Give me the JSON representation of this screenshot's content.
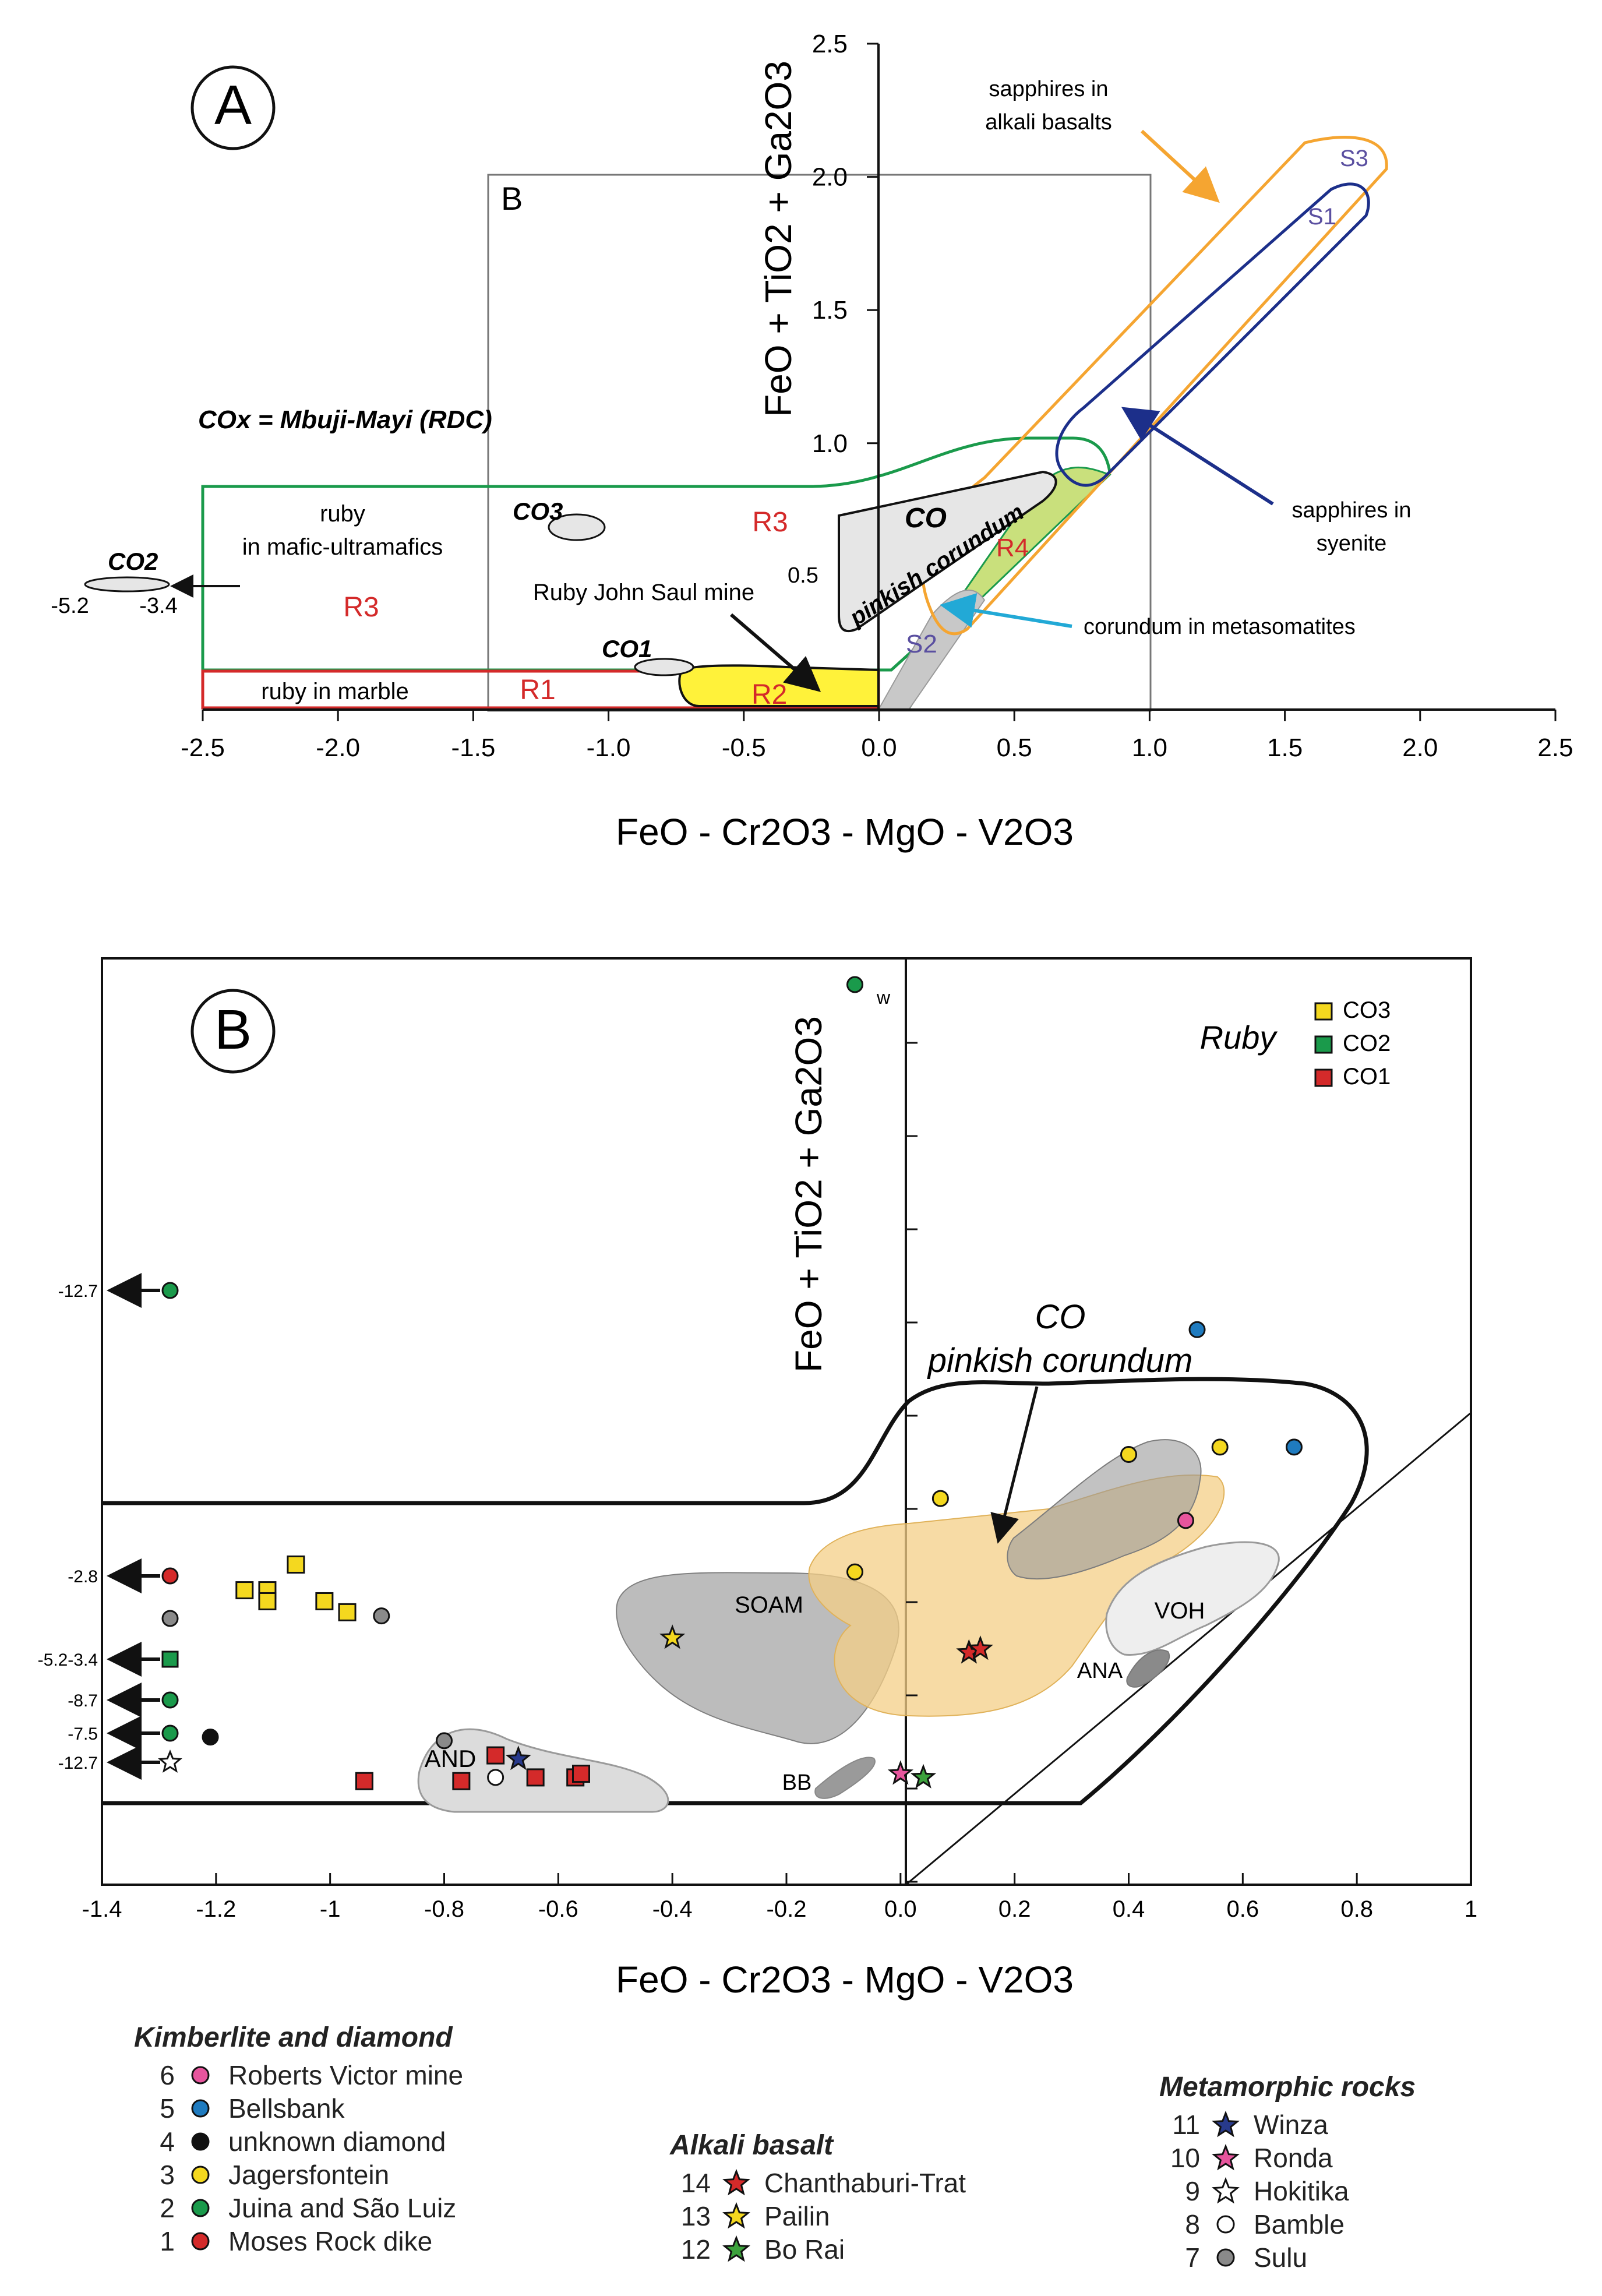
{
  "colors": {
    "green": "#1a9a4b",
    "red": "#d42a2a",
    "orange": "#f5a531",
    "navy": "#1c2f8a",
    "cyan": "#22a9d6",
    "yellow": "#fff23a",
    "lightgreen": "#c9e07c",
    "gray": "#c8c8c8",
    "amber": "#f4cf87",
    "darkgray": "#9a9a9a",
    "lightgray": "#e4e4e4",
    "purple": "#5a4fa0"
  },
  "chart_data": [
    {
      "type": "scatter",
      "panel": "A",
      "panel_label": "A",
      "xlabel": "FeO - Cr2O3 - MgO - V2O3",
      "ylabel": "FeO + TiO2 + Ga2O3",
      "xlim": [
        -2.5,
        2.5
      ],
      "ylim": [
        0,
        2.5
      ],
      "xticks": [
        -2.5,
        -2.0,
        -1.5,
        -1.0,
        -0.5,
        0.0,
        0.5,
        1.0,
        1.5,
        2.0,
        2.5
      ],
      "yticks": [
        0.5,
        1.0,
        1.5,
        2.0,
        2.5
      ],
      "zoom_box": {
        "label": "B",
        "x": [
          -1.4,
          1.0
        ],
        "y": [
          0,
          2.0
        ]
      },
      "legend_note": "COx = Mbuji-Mayi (RDC)",
      "fields": [
        {
          "name": "ruby in mafic-ultramafics",
          "label": "ruby\nin mafic-ultramafics",
          "code": "R3",
          "color": "green"
        },
        {
          "name": "ruby in marble",
          "label": "ruby in marble",
          "code": "R1",
          "color": "red"
        },
        {
          "name": "Ruby John Saul mine",
          "code": "R2",
          "color": "yellow"
        },
        {
          "name": "corundum in metasomatites",
          "code": "R4",
          "color": "lightgreen"
        },
        {
          "name": "sapphires in alkali basalts",
          "code": "S3",
          "color": "orange"
        },
        {
          "name": "sapphires in syenite",
          "code": "S1",
          "color": "navy"
        },
        {
          "name": "S2",
          "code": "S2",
          "color": "gray"
        },
        {
          "name": "pinkish corundum",
          "code": "CO",
          "color": "gray"
        }
      ],
      "clusters": [
        "CO1",
        "CO2",
        "CO3"
      ],
      "annotations": {
        "sapphires_alkali": [
          "sapphires in",
          "alkali basalts"
        ],
        "sapphires_syenite": [
          "sapphires in",
          "syenite"
        ],
        "metasomatites": "corundum in metasomatites",
        "john_saul": "Ruby John Saul mine",
        "co_pinkish": "pinkish corundum",
        "co": "CO",
        "co1": "CO1",
        "co2": "CO2",
        "co3": "CO3",
        "ruby_mafic": [
          "ruby",
          "in mafic-ultramafics"
        ],
        "ruby_marble": "ruby in marble",
        "r1": "R1",
        "r2": "R2",
        "r3": "R3",
        "r4": "R4",
        "s1": "S1",
        "s2": "S2",
        "s3": "S3",
        "co2_range_min": "-5.2",
        "co2_range_max": "-3.4"
      }
    },
    {
      "type": "scatter",
      "panel": "B",
      "panel_label": "B",
      "xlabel": "FeO - Cr2O3 - MgO - V2O3",
      "ylabel": "FeO + TiO2 + Ga2O3",
      "xlim": [
        -1.4,
        1.0
      ],
      "xticks": [
        -1.4,
        -1.2,
        -1.0,
        -0.8,
        -0.6,
        -0.4,
        -0.2,
        0.0,
        0.2,
        0.4,
        0.6,
        0.8,
        1.0
      ],
      "xtick_labels": [
        "-1.4",
        "-1.2",
        "-1",
        "-0.8",
        "-0.6",
        "-0.4",
        "-0.2",
        "0.0",
        "0.2",
        "0.4",
        "0.6",
        "0.8",
        "1"
      ],
      "fields": [
        "CO pinkish corundum",
        "SOAM",
        "VOH",
        "ANA",
        "AND",
        "BB"
      ],
      "field_labels": {
        "soam": "SOAM",
        "voh": "VOH",
        "ana": "ANA",
        "and": "AND",
        "bb": "BB"
      },
      "co_label": [
        "CO",
        "pinkish corundum"
      ],
      "ruby_legend": {
        "title": "Ruby",
        "items": [
          {
            "code": "CO3",
            "color": "#f4d81f"
          },
          {
            "code": "CO2",
            "color": "#1a9a4b"
          },
          {
            "code": "CO1",
            "color": "#d42a2a"
          }
        ]
      },
      "offscale_arrows": [
        "-12.7",
        "-2.8",
        "-5.2-3.4",
        "-8.7",
        "-7.5",
        "-12.7"
      ],
      "w_label": "w",
      "series": [
        {
          "id": 1,
          "name": "Moses Rock dike",
          "color": "#d42a2a",
          "symbol": "circle",
          "group": "Kimberlite and diamond"
        },
        {
          "id": 2,
          "name": "Juina and São Luiz",
          "color": "#1a9a4b",
          "symbol": "circle",
          "group": "Kimberlite and diamond"
        },
        {
          "id": 3,
          "name": "Jagersfontein",
          "color": "#f4d81f",
          "symbol": "circle",
          "group": "Kimberlite and diamond"
        },
        {
          "id": 4,
          "name": "unknown diamond",
          "color": "#111111",
          "symbol": "circle",
          "group": "Kimberlite and diamond"
        },
        {
          "id": 5,
          "name": "Bellsbank",
          "color": "#1f7bbf",
          "symbol": "circle",
          "group": "Kimberlite and diamond"
        },
        {
          "id": 6,
          "name": "Roberts Victor mine",
          "color": "#e7559d",
          "symbol": "circle",
          "group": "Kimberlite and diamond"
        },
        {
          "id": 7,
          "name": "Sulu",
          "color": "#8a8a8a",
          "symbol": "circle",
          "group": "Metamorphic rocks"
        },
        {
          "id": 8,
          "name": "Bamble",
          "color": "#ffffff",
          "symbol": "circle",
          "group": "Metamorphic rocks"
        },
        {
          "id": 9,
          "name": "Hokitika",
          "color": "#ffffff",
          "symbol": "star",
          "group": "Metamorphic rocks"
        },
        {
          "id": 10,
          "name": "Ronda",
          "color": "#e7559d",
          "symbol": "star",
          "group": "Metamorphic rocks"
        },
        {
          "id": 11,
          "name": "Winza",
          "color": "#283a8c",
          "symbol": "star",
          "group": "Metamorphic rocks"
        },
        {
          "id": 12,
          "name": "Bo Rai",
          "color": "#3ca23c",
          "symbol": "star",
          "group": "Alkali basalt"
        },
        {
          "id": 13,
          "name": "Pailin",
          "color": "#f4d81f",
          "symbol": "star",
          "group": "Alkali basalt"
        },
        {
          "id": 14,
          "name": "Chanthaburi-Trat",
          "color": "#d42a2a",
          "symbol": "star",
          "group": "Alkali basalt"
        }
      ],
      "points": [
        {
          "x": -0.08,
          "y": 2.4,
          "series": 2
        },
        {
          "x": 0.52,
          "y": 1.46,
          "series": 5
        },
        {
          "x": 0.69,
          "y": 1.14,
          "series": 5
        },
        {
          "x": 0.07,
          "y": 1.0,
          "series": 3
        },
        {
          "x": 0.4,
          "y": 1.12,
          "series": 3
        },
        {
          "x": 0.56,
          "y": 1.14,
          "series": 3
        },
        {
          "x": -0.08,
          "y": 0.8,
          "series": 3
        },
        {
          "x": 0.5,
          "y": 0.94,
          "series": 6
        },
        {
          "x": 0.12,
          "y": 0.58,
          "series": 14
        },
        {
          "x": 0.14,
          "y": 0.59,
          "series": 14
        },
        {
          "x": -0.4,
          "y": 0.62,
          "series": 13
        },
        {
          "x": 0.04,
          "y": 0.24,
          "series": 12
        },
        {
          "x": 0.0,
          "y": 0.25,
          "series": 10
        },
        {
          "x": -0.67,
          "y": 0.29,
          "series": 11
        },
        {
          "x": -0.71,
          "y": 0.24,
          "series": 8
        },
        {
          "x": -0.91,
          "y": 0.68,
          "series": 7
        },
        {
          "x": -0.8,
          "y": 0.34,
          "series": 7
        },
        {
          "x": -1.21,
          "y": 0.35,
          "series": 4
        }
      ],
      "ruby_points": [
        {
          "x": -1.15,
          "y": 0.75,
          "code": "CO3"
        },
        {
          "x": -1.11,
          "y": 0.75,
          "code": "CO3"
        },
        {
          "x": -1.06,
          "y": 0.82,
          "code": "CO3"
        },
        {
          "x": -1.01,
          "y": 0.72,
          "code": "CO3"
        },
        {
          "x": -0.97,
          "y": 0.69,
          "code": "CO3"
        },
        {
          "x": -1.11,
          "y": 0.72,
          "code": "CO3"
        },
        {
          "x": -0.94,
          "y": 0.23,
          "code": "CO1"
        },
        {
          "x": -0.77,
          "y": 0.23,
          "code": "CO1"
        },
        {
          "x": -0.71,
          "y": 0.3,
          "code": "CO1"
        },
        {
          "x": -0.64,
          "y": 0.24,
          "code": "CO1"
        },
        {
          "x": -0.57,
          "y": 0.24,
          "code": "CO1"
        },
        {
          "x": -0.56,
          "y": 0.25,
          "code": "CO1"
        }
      ]
    }
  ],
  "legend": {
    "kimberlite_title": "Kimberlite and diamond",
    "alkali_title": "Alkali basalt",
    "metamorphic_title": "Metamorphic rocks",
    "kimberlite": [
      {
        "num": "6",
        "name": "Roberts Victor mine",
        "color": "#e7559d",
        "symbol": "circle"
      },
      {
        "num": "5",
        "name": "Bellsbank",
        "color": "#1f7bbf",
        "symbol": "circle"
      },
      {
        "num": "4",
        "name": "unknown diamond",
        "color": "#111111",
        "symbol": "circle"
      },
      {
        "num": "3",
        "name": "Jagersfontein",
        "color": "#f4d81f",
        "symbol": "circle"
      },
      {
        "num": "2",
        "name": "Juina and São Luiz",
        "color": "#1a9a4b",
        "symbol": "circle"
      },
      {
        "num": "1",
        "name": "Moses Rock dike",
        "color": "#d42a2a",
        "symbol": "circle"
      }
    ],
    "alkali": [
      {
        "num": "14",
        "name": "Chanthaburi-Trat",
        "color": "#d42a2a",
        "symbol": "star"
      },
      {
        "num": "13",
        "name": "Pailin",
        "color": "#f4d81f",
        "symbol": "star"
      },
      {
        "num": "12",
        "name": "Bo Rai",
        "color": "#3ca23c",
        "symbol": "star"
      }
    ],
    "metamorphic": [
      {
        "num": "11",
        "name": "Winza",
        "color": "#283a8c",
        "symbol": "star"
      },
      {
        "num": "10",
        "name": "Ronda",
        "color": "#e7559d",
        "symbol": "star"
      },
      {
        "num": "9",
        "name": "Hokitika",
        "color": "#ffffff",
        "symbol": "star"
      },
      {
        "num": "8",
        "name": "Bamble",
        "color": "#ffffff",
        "symbol": "circle"
      },
      {
        "num": "7",
        "name": "Sulu",
        "color": "#8a8a8a",
        "symbol": "circle"
      }
    ]
  }
}
